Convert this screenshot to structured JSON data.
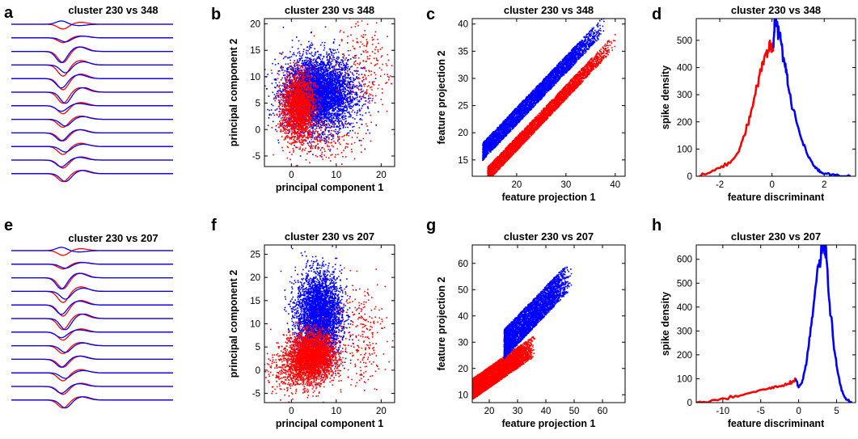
{
  "colors": {
    "cluster_a": "#ff0000",
    "cluster_b": "#0000ff",
    "axis": "#000000"
  },
  "panels": {
    "a": {
      "letter": "a",
      "title": "cluster 230 vs 348"
    },
    "b": {
      "letter": "b"
    },
    "c": {
      "letter": "c"
    },
    "d": {
      "letter": "d"
    },
    "e": {
      "letter": "e",
      "title": "cluster 230 vs 207"
    },
    "f": {
      "letter": "f"
    },
    "g": {
      "letter": "g"
    },
    "h": {
      "letter": "h"
    }
  },
  "chart_data": [
    {
      "panel": "b",
      "type": "scatter",
      "title": "cluster 230 vs 348",
      "xlabel": "principal component 1",
      "ylabel": "principal component 2",
      "xlim": [
        -6,
        23
      ],
      "ylim": [
        -7,
        21
      ],
      "xticks": [
        0,
        10,
        20
      ],
      "yticks": [
        -5,
        0,
        5,
        10,
        15,
        20
      ],
      "series": [
        {
          "color": "#0000ff",
          "points": [
            [
              6,
              7,
              4,
              3.5,
              4500
            ],
            [
              4,
              6,
              2,
              2,
              500
            ],
            [
              3,
              8,
              1.5,
              2,
              300
            ]
          ]
        },
        {
          "color": "#ff0000",
          "points": [
            [
              1.5,
              5,
              1.8,
              3,
              1800
            ],
            [
              7,
              -2,
              4,
              2,
              180
            ],
            [
              16,
              12,
              3,
              5,
              220
            ],
            [
              1,
              1,
              2,
              2.5,
              250
            ]
          ]
        }
      ]
    },
    {
      "panel": "c",
      "type": "scatter",
      "title": "cluster 230 vs 348",
      "xlabel": "feature projection 1",
      "ylabel": "feature projection 2",
      "xlim": [
        11,
        42
      ],
      "ylim": [
        12,
        41
      ],
      "xticks": [
        20,
        30,
        40
      ],
      "yticks": [
        15,
        20,
        25,
        30,
        35,
        40
      ],
      "series": [
        {
          "color": "#0000ff",
          "band": {
            "x": [
              13,
              38
            ],
            "slope": 0.95,
            "intercept": 2.7,
            "spread": [
              0,
              3.2
            ],
            "n": 4500
          }
        },
        {
          "color": "#ff0000",
          "band": {
            "x": [
              14,
              40
            ],
            "slope": 0.95,
            "intercept": 0.5,
            "spread": [
              -2.6,
              0
            ],
            "n": 4000
          }
        }
      ]
    },
    {
      "panel": "d",
      "type": "line",
      "title": "cluster 230 vs 348",
      "xlabel": "feature discriminant",
      "ylabel": "spike density",
      "xlim": [
        -2.9,
        3.2
      ],
      "ylim": [
        0,
        580
      ],
      "xticks": [
        -2,
        0,
        2
      ],
      "yticks": [
        0,
        100,
        200,
        300,
        400,
        500
      ],
      "series": [
        {
          "color": "#ff0000",
          "x": [
            -2.8,
            -2.4,
            -2.0,
            -1.6,
            -1.3,
            -1.1,
            -0.9,
            -0.7,
            -0.5,
            -0.35,
            -0.2,
            -0.1,
            0.0,
            0.05
          ],
          "y": [
            0,
            15,
            30,
            50,
            90,
            140,
            200,
            280,
            360,
            420,
            455,
            465,
            470,
            470
          ]
        },
        {
          "color": "#0000ff",
          "x": [
            0.05,
            0.1,
            0.2,
            0.3,
            0.4,
            0.5,
            0.6,
            0.8,
            1.0,
            1.2,
            1.4,
            1.6,
            1.8,
            2.0,
            2.3,
            2.6,
            3.0
          ],
          "y": [
            480,
            570,
            555,
            510,
            460,
            410,
            350,
            250,
            180,
            120,
            70,
            40,
            20,
            10,
            5,
            2,
            0
          ]
        }
      ]
    },
    {
      "panel": "f",
      "type": "scatter",
      "title": "cluster 230 vs 207",
      "xlabel": "principal component 1",
      "ylabel": "principal component 2",
      "xlim": [
        -6,
        23
      ],
      "ylim": [
        -7,
        27
      ],
      "xticks": [
        0,
        10,
        20
      ],
      "yticks": [
        -5,
        0,
        5,
        10,
        15,
        20,
        25
      ],
      "series": [
        {
          "color": "#0000ff",
          "points": [
            [
              6,
              12,
              2.5,
              4.5,
              3800
            ]
          ]
        },
        {
          "color": "#ff0000",
          "points": [
            [
              4.5,
              3,
              2.5,
              2.5,
              3000
            ],
            [
              15,
              8,
              3,
              6,
              250
            ],
            [
              0,
              0,
              3,
              3,
              400
            ]
          ]
        }
      ]
    },
    {
      "panel": "g",
      "type": "scatter",
      "title": "cluster 230 vs 207",
      "xlabel": "feature projection 1",
      "ylabel": "feature projection 2",
      "xlim": [
        14,
        68
      ],
      "ylim": [
        7,
        67
      ],
      "xticks": [
        20,
        30,
        40,
        50,
        60
      ],
      "yticks": [
        10,
        20,
        30,
        40,
        50,
        60
      ],
      "series": [
        {
          "color": "#ff0000",
          "band": {
            "x": [
              14,
              36
            ],
            "slope": 0.75,
            "intercept": 2,
            "spread": [
              -4,
              4
            ],
            "n": 4500
          }
        },
        {
          "color": "#0000ff",
          "band": {
            "x": [
              25,
              49
            ],
            "slope": 1.12,
            "intercept": -1,
            "spread": [
              -3,
              8
            ],
            "n": 3500
          }
        }
      ]
    },
    {
      "panel": "h",
      "type": "line",
      "title": "cluster 230 vs 207",
      "xlabel": "feature discriminant",
      "ylabel": "spike density",
      "xlim": [
        -13.5,
        7.5
      ],
      "ylim": [
        0,
        660
      ],
      "xticks": [
        -10,
        -5,
        0,
        5
      ],
      "yticks": [
        0,
        100,
        200,
        300,
        400,
        500,
        600
      ],
      "series": [
        {
          "color": "#ff0000",
          "x": [
            -13.5,
            -12,
            -10,
            -8,
            -6,
            -4,
            -3,
            -2,
            -1.2,
            -0.7,
            -0.4
          ],
          "y": [
            0,
            5,
            15,
            25,
            45,
            60,
            65,
            70,
            80,
            90,
            100
          ]
        },
        {
          "color": "#0000ff",
          "x": [
            -0.4,
            0,
            0.5,
            1,
            1.5,
            2,
            2.5,
            3,
            3.3,
            3.6,
            4,
            4.5,
            5,
            5.5,
            6,
            6.5,
            7
          ],
          "y": [
            100,
            60,
            90,
            160,
            280,
            420,
            550,
            630,
            650,
            620,
            450,
            280,
            150,
            70,
            25,
            8,
            0
          ]
        }
      ]
    },
    {
      "panel": "a",
      "type": "waveforms",
      "title": "cluster 230 vs 348",
      "channels": 12,
      "series": [
        {
          "color": "#ff0000"
        },
        {
          "color": "#0000ff"
        }
      ]
    },
    {
      "panel": "e",
      "type": "waveforms",
      "title": "cluster 230 vs 207",
      "channels": 12,
      "series": [
        {
          "color": "#ff0000"
        },
        {
          "color": "#0000ff"
        }
      ]
    }
  ]
}
